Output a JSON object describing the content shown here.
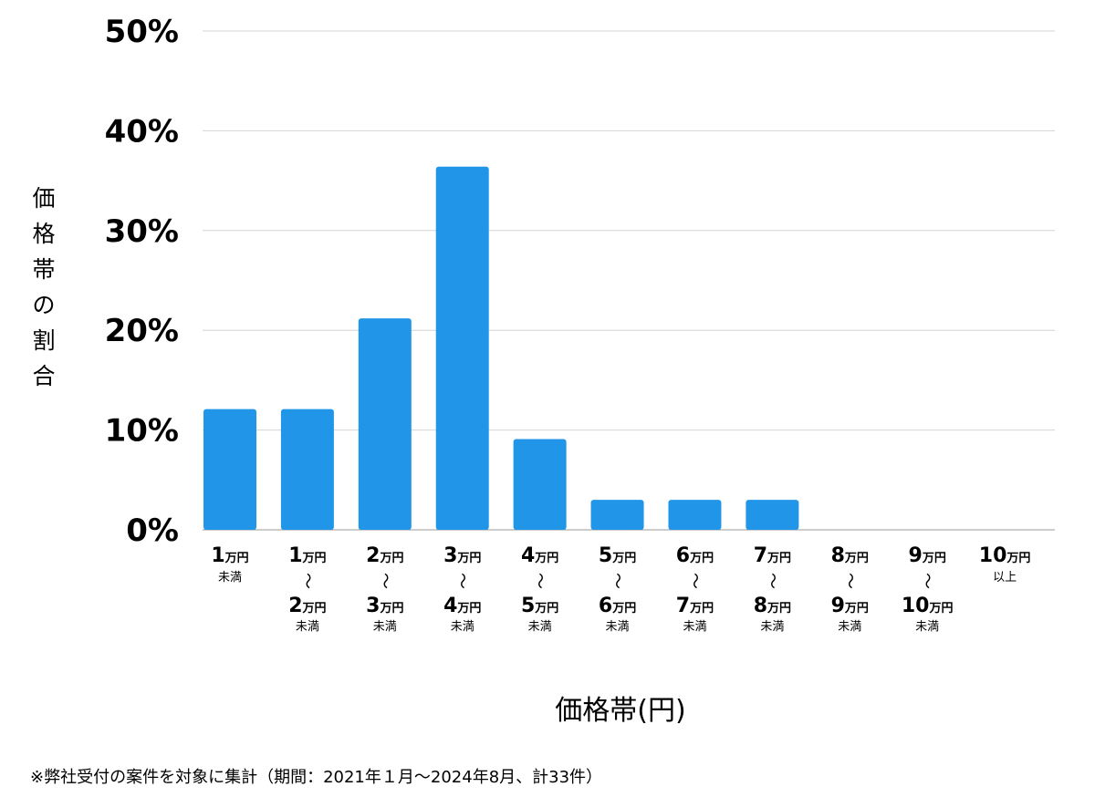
{
  "chart_data": {
    "type": "bar",
    "ylabel": "価格帯の割合",
    "xlabel": "価格帯(円)",
    "ylim": [
      0,
      50
    ],
    "yticks": [
      "0%",
      "10%",
      "20%",
      "30%",
      "40%",
      "50%"
    ],
    "grid": true,
    "color": "#2196e8",
    "categories": [
      {
        "lines": [
          {
            "n": "1",
            "u": "万円"
          }
        ],
        "note": "未満"
      },
      {
        "lines": [
          {
            "n": "1",
            "u": "万円"
          },
          {
            "n": "2",
            "u": "万円"
          }
        ],
        "note": "未満"
      },
      {
        "lines": [
          {
            "n": "2",
            "u": "万円"
          },
          {
            "n": "3",
            "u": "万円"
          }
        ],
        "note": "未満"
      },
      {
        "lines": [
          {
            "n": "3",
            "u": "万円"
          },
          {
            "n": "4",
            "u": "万円"
          }
        ],
        "note": "未満"
      },
      {
        "lines": [
          {
            "n": "4",
            "u": "万円"
          },
          {
            "n": "5",
            "u": "万円"
          }
        ],
        "note": "未満"
      },
      {
        "lines": [
          {
            "n": "5",
            "u": "万円"
          },
          {
            "n": "6",
            "u": "万円"
          }
        ],
        "note": "未満"
      },
      {
        "lines": [
          {
            "n": "6",
            "u": "万円"
          },
          {
            "n": "7",
            "u": "万円"
          }
        ],
        "note": "未満"
      },
      {
        "lines": [
          {
            "n": "7",
            "u": "万円"
          },
          {
            "n": "8",
            "u": "万円"
          }
        ],
        "note": "未満"
      },
      {
        "lines": [
          {
            "n": "8",
            "u": "万円"
          },
          {
            "n": "9",
            "u": "万円"
          }
        ],
        "note": "未満"
      },
      {
        "lines": [
          {
            "n": "9",
            "u": "万円"
          },
          {
            "n": "10",
            "u": "万円"
          }
        ],
        "note": "未満"
      },
      {
        "lines": [
          {
            "n": "10",
            "u": "万円"
          }
        ],
        "note": "以上"
      }
    ],
    "range_mark": "〜",
    "values": [
      12.1,
      12.1,
      21.2,
      36.4,
      9.1,
      3.0,
      3.0,
      3.0,
      0,
      0,
      0
    ]
  },
  "footnote": "※弊社受付の案件を対象に集計（期間：2021年１月〜2024年8月、計33件）"
}
